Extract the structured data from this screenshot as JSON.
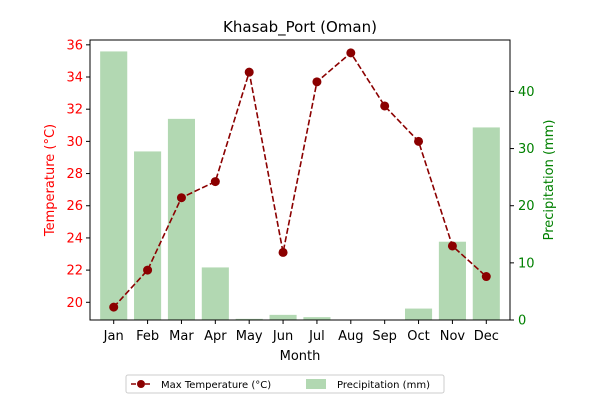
{
  "chart_data": {
    "type": "bar",
    "title": "Khasab_Port (Oman)",
    "xlabel": "Month",
    "categories": [
      "Jan",
      "Feb",
      "Mar",
      "Apr",
      "May",
      "Jun",
      "Jul",
      "Aug",
      "Sep",
      "Oct",
      "Nov",
      "Dec"
    ],
    "series": [
      {
        "name": "Max Temperature (°C)",
        "type": "line",
        "axis": "left",
        "color": "#8b0000",
        "values": [
          19.7,
          22.0,
          26.5,
          27.5,
          34.3,
          23.1,
          33.7,
          35.5,
          32.2,
          30.0,
          23.5,
          21.6
        ]
      },
      {
        "name": "Precipitation (mm)",
        "type": "bar",
        "axis": "right",
        "color": "#b2d8b2",
        "values": [
          47.0,
          29.5,
          35.2,
          9.2,
          0.2,
          0.9,
          0.5,
          0.0,
          0.0,
          2.0,
          13.7,
          33.7
        ]
      }
    ],
    "y_left": {
      "label": "Temperature (°C)",
      "color": "#ff0000",
      "ylim": [
        18.9,
        36.3
      ],
      "ticks": [
        20,
        22,
        24,
        26,
        28,
        30,
        32,
        34,
        36
      ]
    },
    "y_right": {
      "label": "Precipitation (mm)",
      "color": "#008000",
      "ylim": [
        0,
        49
      ],
      "ticks": [
        0,
        10,
        20,
        30,
        40
      ]
    },
    "grid": false,
    "legend_placement": "bottom-center"
  }
}
